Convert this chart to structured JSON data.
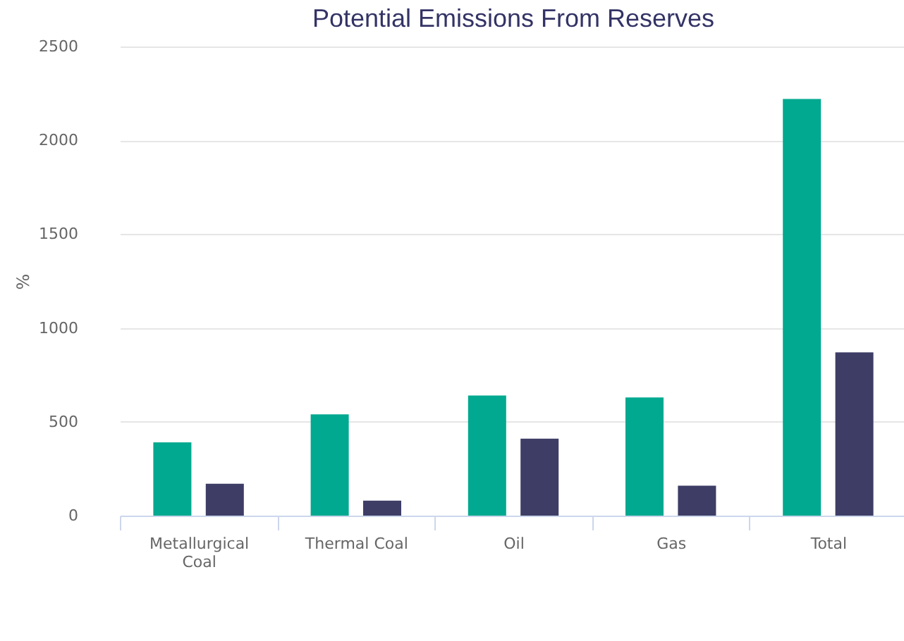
{
  "chart_data": {
    "type": "bar",
    "title": "Potential Emissions From Reserves",
    "ylabel": "%",
    "categories": [
      "Metallurgical Coal",
      "Thermal Coal",
      "Oil",
      "Gas",
      "Total"
    ],
    "series": [
      {
        "color": "#00a98f",
        "values": [
          390,
          540,
          640,
          630,
          2220
        ]
      },
      {
        "color": "#3d3d66",
        "values": [
          170,
          80,
          410,
          160,
          870
        ]
      }
    ],
    "ylim": [
      0,
      2500
    ],
    "yticks": [
      0,
      500,
      1000,
      1500,
      2000,
      2500
    ],
    "grid": "y",
    "legend": false
  }
}
